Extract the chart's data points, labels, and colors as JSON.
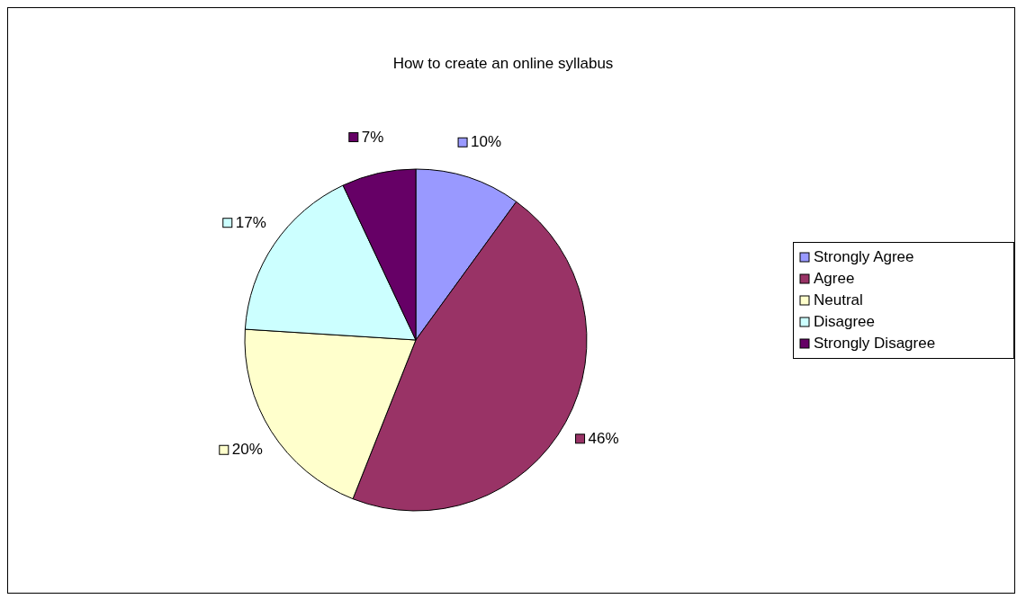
{
  "chart_data": {
    "type": "pie",
    "title": "How to create an online syllabus",
    "categories": [
      "Strongly Agree",
      "Agree",
      "Neutral",
      "Disagree",
      "Strongly Disagree"
    ],
    "values": [
      10,
      46,
      20,
      17,
      7
    ],
    "value_labels": [
      "10%",
      "46%",
      "20%",
      "17%",
      "7%"
    ],
    "colors": [
      "#9999ff",
      "#993366",
      "#ffffcc",
      "#ccffff",
      "#660066"
    ],
    "legend": "right"
  }
}
